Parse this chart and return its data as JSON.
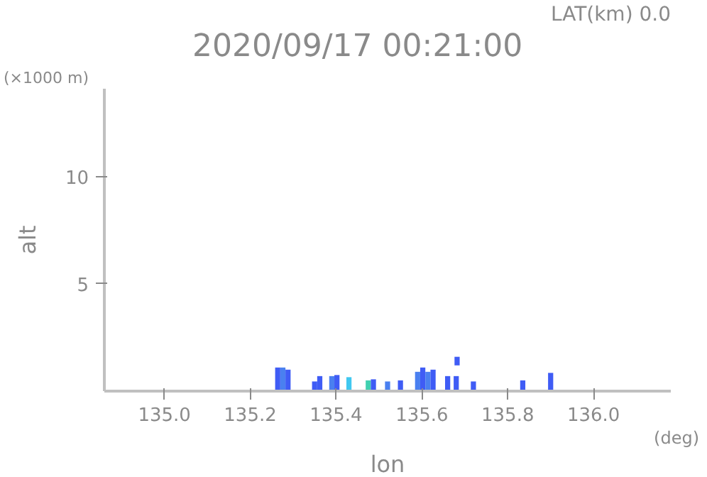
{
  "chart_data": {
    "type": "bar",
    "title": "2020/09/17 00:21:00",
    "xlabel": "lon",
    "ylabel": "alt",
    "annotations": [
      "LAT(km) 0.0",
      "(×1000 m)",
      "(deg)"
    ],
    "x": [
      135.264,
      135.276,
      135.288,
      135.35,
      135.362,
      135.39,
      135.402,
      135.43,
      135.475,
      135.487,
      135.52,
      135.55,
      135.59,
      135.602,
      135.614,
      135.626,
      135.66,
      135.68,
      135.682,
      135.72,
      135.835,
      135.9
    ],
    "values": [
      1.1,
      1.1,
      1.0,
      0.45,
      0.7,
      0.7,
      0.75,
      0.65,
      0.5,
      0.55,
      0.45,
      0.5,
      0.9,
      1.1,
      0.9,
      1.0,
      0.7,
      0.7,
      0.4,
      0.45,
      0.5,
      0.85
    ],
    "base": [
      0,
      0,
      0,
      0,
      0,
      0,
      0,
      0,
      0,
      0,
      0,
      0,
      0,
      0,
      0,
      0,
      0,
      0,
      1.2,
      0,
      0,
      0
    ],
    "colors": [
      "#3f5cf5",
      "#4a80f0",
      "#3f5cf5",
      "#3f5cf5",
      "#3f5cf5",
      "#4a80f0",
      "#3f5cf5",
      "#40c8f0",
      "#40d0b0",
      "#3f5cf5",
      "#4a80f0",
      "#3f5cf5",
      "#4a80f0",
      "#3f5cf5",
      "#4a80f0",
      "#3f5cf5",
      "#3f5cf5",
      "#3f5cf5",
      "#3f5cf5",
      "#3f5cf5",
      "#3f5cf5",
      "#3f5cf5"
    ],
    "xlim": [
      134.86,
      136.18
    ],
    "ylim": [
      0,
      14.1
    ],
    "xticks": [
      {
        "value": 135,
        "label": "135.0"
      },
      {
        "value": 135.2,
        "label": "135.2"
      },
      {
        "value": 135.4,
        "label": "135.4"
      },
      {
        "value": 135.6,
        "label": "135.6"
      },
      {
        "value": 135.8,
        "label": "135.8"
      },
      {
        "value": 136,
        "label": "136.0"
      }
    ],
    "yticks": [
      5,
      10
    ],
    "grid": false
  }
}
